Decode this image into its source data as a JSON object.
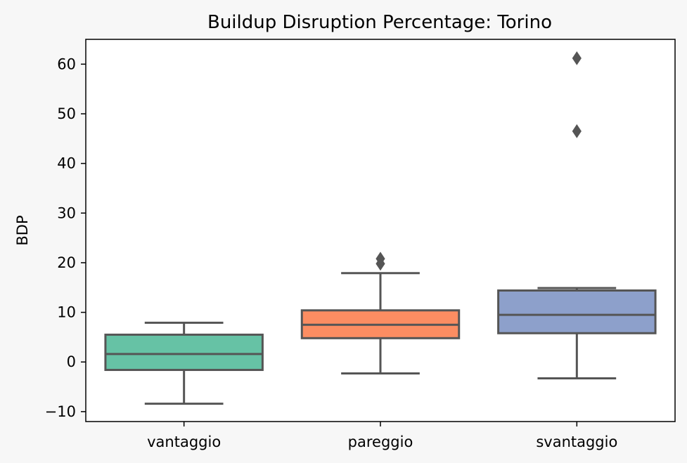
{
  "chart_data": {
    "type": "box",
    "title": "Buildup Disruption Percentage: Torino",
    "xlabel": "",
    "ylabel": "BDP",
    "ylim": [
      -12,
      65
    ],
    "yticks": [
      -10,
      0,
      10,
      20,
      30,
      40,
      50,
      60
    ],
    "ytick_labels": [
      "−10",
      "0",
      "10",
      "20",
      "30",
      "40",
      "50",
      "60"
    ],
    "grid": false,
    "categories": [
      "vantaggio",
      "pareggio",
      "svantaggio"
    ],
    "boxes": [
      {
        "category": "vantaggio",
        "whisker_low": -8.4,
        "q1": -1.6,
        "median": 1.6,
        "q3": 5.5,
        "whisker_high": 7.9,
        "outliers": [],
        "color": "#66c2a5"
      },
      {
        "category": "pareggio",
        "whisker_low": -2.3,
        "q1": 4.8,
        "median": 7.5,
        "q3": 10.4,
        "whisker_high": 17.9,
        "outliers": [
          19.8,
          20.8
        ],
        "color": "#fc8d62"
      },
      {
        "category": "svantaggio",
        "whisker_low": -3.3,
        "q1": 5.8,
        "median": 9.5,
        "q3": 14.4,
        "whisker_high": 14.9,
        "outliers": [
          46.5,
          61.2
        ],
        "color": "#8da0cb"
      }
    ],
    "line_color": "#555555"
  }
}
